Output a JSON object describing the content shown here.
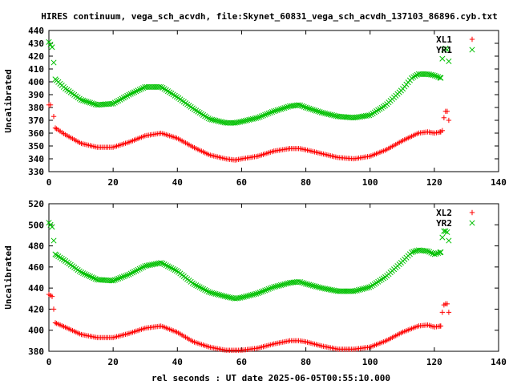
{
  "title": "HIRES continuum, vega_sch_acvdh, file:Skynet_60831_vega_sch_acvdh_137103_86896.cyb.txt",
  "xlabel": "rel seconds : UT date 2025-06-05T00:55:10.000",
  "colors": {
    "red": "#ff0000",
    "green": "#00c000",
    "axis": "#000000",
    "grid": "#a0a0a0"
  },
  "chart_data": [
    {
      "type": "scatter",
      "ylabel": "Uncalibrated",
      "xlim": [
        0,
        140
      ],
      "ylim": [
        330,
        440
      ],
      "xticks": [
        0,
        20,
        40,
        60,
        80,
        100,
        120,
        140
      ],
      "yticks": [
        330,
        340,
        350,
        360,
        370,
        380,
        390,
        400,
        410,
        420,
        430,
        440
      ],
      "legend_position": "top-right",
      "series": [
        {
          "name": "XL1",
          "color": "#ff0000",
          "marker": "plus",
          "x": [
            0,
            0.5,
            1.5,
            2,
            5,
            10,
            15,
            20,
            25,
            30,
            35,
            40,
            45,
            50,
            55,
            58,
            60,
            65,
            70,
            75,
            78,
            80,
            85,
            90,
            95,
            100,
            105,
            110,
            115,
            118,
            120,
            122,
            122.5,
            123,
            123.5,
            124,
            124.5
          ],
          "y": [
            382,
            382,
            373,
            364,
            359,
            352,
            349,
            349,
            353,
            358,
            360,
            356,
            349,
            343,
            340,
            339,
            340,
            342,
            346,
            348,
            348,
            347,
            344,
            341,
            340,
            342,
            347,
            354,
            360,
            361,
            360,
            361,
            362,
            372,
            377,
            377,
            370
          ]
        },
        {
          "name": "YR1",
          "color": "#00c000",
          "marker": "cross",
          "x": [
            0,
            0.5,
            1,
            1.5,
            2,
            5,
            10,
            15,
            20,
            25,
            30,
            35,
            40,
            45,
            50,
            55,
            58,
            60,
            65,
            70,
            75,
            78,
            80,
            85,
            90,
            95,
            100,
            105,
            110,
            113,
            115,
            118,
            120,
            122,
            122.5,
            123,
            123.5,
            124,
            124.5
          ],
          "y": [
            431,
            429,
            427,
            415,
            402,
            395,
            386,
            382,
            383,
            390,
            396,
            396,
            388,
            379,
            371,
            368,
            368,
            369,
            372,
            377,
            381,
            382,
            380,
            376,
            373,
            372,
            374,
            382,
            394,
            403,
            406,
            406,
            405,
            403,
            418,
            425,
            426,
            425,
            416
          ]
        }
      ]
    },
    {
      "type": "scatter",
      "ylabel": "Uncalibrated",
      "xlim": [
        0,
        140
      ],
      "ylim": [
        380,
        520
      ],
      "xticks": [
        0,
        20,
        40,
        60,
        80,
        100,
        120,
        140
      ],
      "yticks": [
        380,
        400,
        420,
        440,
        460,
        480,
        500,
        520
      ],
      "legend_position": "top-right",
      "series": [
        {
          "name": "XL2",
          "color": "#ff0000",
          "marker": "plus",
          "x": [
            0,
            0.5,
            1,
            1.5,
            2,
            5,
            10,
            15,
            20,
            25,
            30,
            35,
            40,
            45,
            50,
            55,
            58,
            60,
            65,
            70,
            75,
            78,
            80,
            85,
            90,
            95,
            100,
            105,
            110,
            115,
            118,
            120,
            122,
            122.5,
            123,
            123.5,
            124,
            124.5
          ],
          "y": [
            434,
            433,
            432,
            420,
            407,
            403,
            396,
            393,
            393,
            397,
            402,
            404,
            398,
            389,
            384,
            381,
            381,
            381,
            383,
            387,
            390,
            390,
            389,
            385,
            382,
            382,
            384,
            390,
            398,
            404,
            405,
            403,
            404,
            417,
            424,
            425,
            425,
            417
          ]
        },
        {
          "name": "YR2",
          "color": "#00c000",
          "marker": "cross",
          "x": [
            0,
            0.5,
            1,
            1.5,
            2,
            5,
            10,
            15,
            20,
            25,
            30,
            35,
            40,
            45,
            50,
            55,
            58,
            60,
            65,
            70,
            75,
            78,
            80,
            85,
            90,
            95,
            100,
            105,
            110,
            113,
            115,
            118,
            120,
            122,
            122.5,
            123,
            123.5,
            124,
            124.5
          ],
          "y": [
            502,
            500,
            498,
            485,
            472,
            466,
            455,
            448,
            447,
            453,
            461,
            464,
            456,
            444,
            436,
            432,
            430,
            431,
            435,
            441,
            445,
            446,
            444,
            440,
            437,
            437,
            441,
            451,
            465,
            474,
            476,
            475,
            472,
            474,
            488,
            494,
            494,
            493,
            485
          ]
        }
      ]
    }
  ]
}
